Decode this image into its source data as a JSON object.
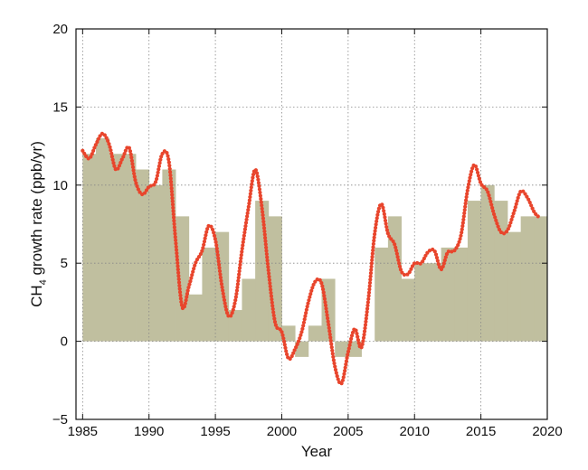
{
  "chart_data": {
    "type": "bar",
    "xlabel": "Year",
    "ylabel": {
      "main": "CH",
      "sub": "4",
      "rest": " growth rate (ppb/yr)"
    },
    "xlim": [
      1984.5,
      2020
    ],
    "ylim": [
      -5,
      20
    ],
    "x_ticks": [
      1985,
      1990,
      1995,
      2000,
      2005,
      2010,
      2015,
      2020
    ],
    "y_ticks": [
      -5,
      0,
      5,
      10,
      15,
      20
    ],
    "grid": true,
    "series": [
      {
        "type": "bar",
        "color": "#c0bf9f",
        "years": [
          1985,
          1986,
          1987,
          1988,
          1989,
          1990,
          1991,
          1992,
          1993,
          1994,
          1995,
          1996,
          1997,
          1998,
          1999,
          2000,
          2001,
          2002,
          2003,
          2004,
          2005,
          2006,
          2007,
          2008,
          2009,
          2010,
          2011,
          2012,
          2013,
          2014,
          2015,
          2016,
          2017,
          2018,
          2019
        ],
        "values": [
          12,
          13,
          12,
          12,
          11,
          10,
          11,
          8,
          3,
          6,
          7,
          2,
          4,
          9,
          8,
          1,
          -1,
          1,
          4,
          -1,
          -1,
          0,
          6,
          8,
          4,
          5,
          5,
          6,
          6,
          9,
          10,
          9,
          7,
          8,
          8
        ]
      },
      {
        "type": "line",
        "color": "#e8452c",
        "x": [
          1985.0,
          1985.5,
          1986.0,
          1986.5,
          1987.0,
          1987.5,
          1988.0,
          1988.5,
          1989.0,
          1989.5,
          1990.0,
          1990.5,
          1991.0,
          1991.5,
          1992.0,
          1992.5,
          1993.0,
          1993.5,
          1994.0,
          1994.5,
          1995.0,
          1995.5,
          1996.0,
          1996.5,
          1997.0,
          1997.5,
          1998.0,
          1998.5,
          1999.0,
          1999.5,
          2000.0,
          2000.5,
          2001.0,
          2001.5,
          2002.0,
          2002.5,
          2003.0,
          2003.5,
          2004.0,
          2004.5,
          2005.0,
          2005.5,
          2006.0,
          2006.5,
          2007.0,
          2007.5,
          2008.0,
          2008.5,
          2009.0,
          2009.5,
          2010.0,
          2010.5,
          2011.0,
          2011.5,
          2012.0,
          2012.5,
          2013.0,
          2013.5,
          2014.0,
          2014.5,
          2015.0,
          2015.5,
          2016.0,
          2016.5,
          2017.0,
          2017.5,
          2018.0,
          2018.5,
          2019.0,
          2019.3
        ],
        "y": [
          12.2,
          11.7,
          12.6,
          13.3,
          12.6,
          11.0,
          11.7,
          12.4,
          10.2,
          9.4,
          9.9,
          10.2,
          12.0,
          11.5,
          6.5,
          2.2,
          3.5,
          5.0,
          5.8,
          7.4,
          6.5,
          3.5,
          1.6,
          2.6,
          5.8,
          8.6,
          11.0,
          8.6,
          4.5,
          1.2,
          0.6,
          -1.1,
          -0.5,
          0.6,
          2.5,
          3.8,
          3.7,
          1.2,
          -1.6,
          -2.7,
          -0.7,
          0.8,
          -0.4,
          2.5,
          6.9,
          8.8,
          6.9,
          6.2,
          4.5,
          4.3,
          5.0,
          5.0,
          5.7,
          5.8,
          4.6,
          5.7,
          5.8,
          6.8,
          9.7,
          11.3,
          10.1,
          9.6,
          8.1,
          7.0,
          7.1,
          8.3,
          9.6,
          9.2,
          8.3,
          8.0
        ]
      }
    ]
  }
}
